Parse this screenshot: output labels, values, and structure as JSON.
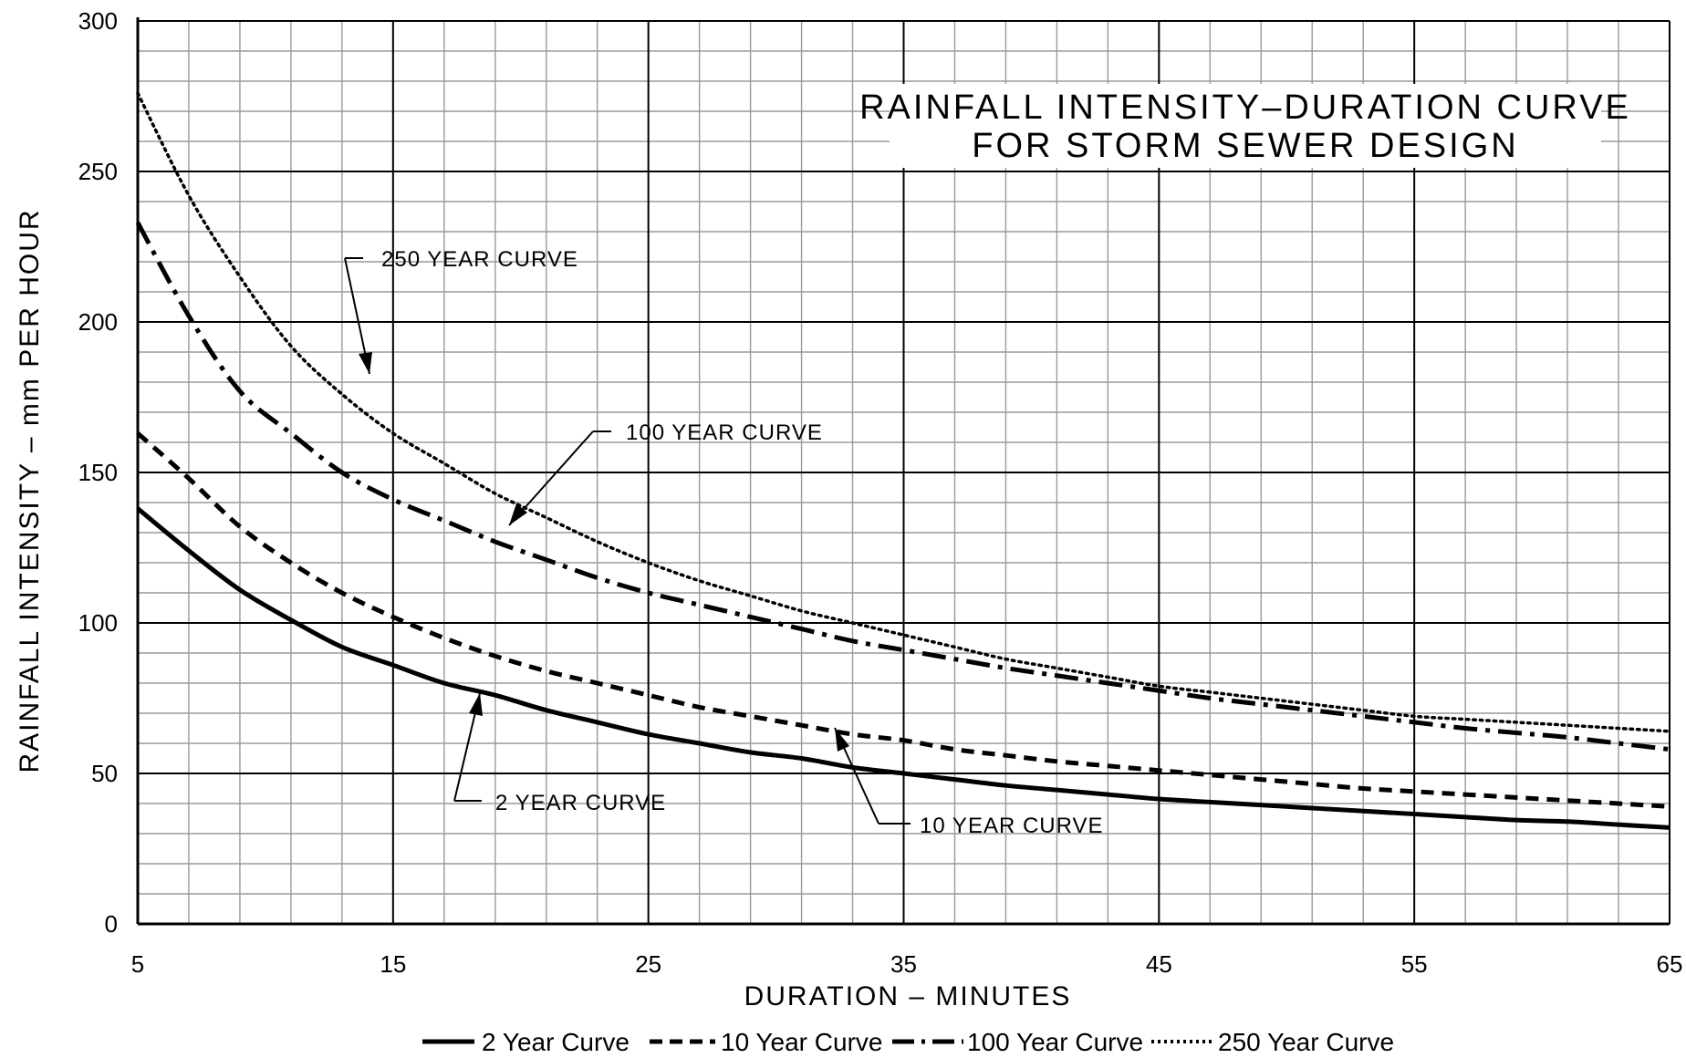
{
  "chart_data": {
    "type": "line",
    "title": "RAINFALL INTENSITY–DURATION CURVE",
    "subtitle": "FOR STORM SEWER DESIGN",
    "xlabel": "DURATION  –  MINUTES",
    "ylabel": "RAINFALL INTENSITY  –  mm PER HOUR",
    "xlim": [
      5,
      65
    ],
    "ylim": [
      0,
      300
    ],
    "x_ticks": [
      5,
      15,
      25,
      35,
      45,
      55,
      65
    ],
    "y_ticks": [
      0,
      50,
      100,
      150,
      200,
      250,
      300
    ],
    "grid": true,
    "legend_position": "bottom",
    "x": [
      5,
      7,
      9,
      11,
      13,
      15,
      17,
      19,
      21,
      23,
      25,
      27,
      29,
      31,
      33,
      35,
      37,
      39,
      41,
      43,
      45,
      47,
      49,
      51,
      53,
      55,
      57,
      59,
      61,
      63,
      65
    ],
    "series": [
      {
        "name": "2 Year Curve",
        "style": "solid",
        "values": [
          138,
          124,
          111,
          101,
          92,
          86,
          80,
          76,
          71,
          67,
          63,
          60,
          57,
          55,
          52,
          50,
          48,
          46,
          44.5,
          43,
          41.5,
          40.5,
          39.5,
          38.5,
          37.5,
          36.5,
          35.5,
          34.5,
          34,
          33,
          32
        ]
      },
      {
        "name": "10 Year Curve",
        "style": "dashed",
        "values": [
          163,
          148,
          132,
          120,
          110,
          102,
          95,
          89,
          84,
          80,
          76,
          72,
          69,
          66,
          63,
          61,
          58,
          56,
          54,
          52.5,
          51,
          49.5,
          48,
          46.5,
          45,
          44,
          43,
          42,
          41,
          40,
          39
        ]
      },
      {
        "name": "100 Year Curve",
        "style": "dashdot",
        "values": [
          233,
          202,
          177,
          163,
          150,
          141,
          134,
          127,
          121,
          115,
          110,
          106,
          102,
          98,
          94,
          91,
          88,
          85,
          82.5,
          80,
          77.5,
          75,
          73,
          71,
          69,
          67,
          65,
          63.5,
          62,
          60,
          58
        ]
      },
      {
        "name": "250 Year Curve",
        "style": "dotted",
        "values": [
          276,
          242,
          215,
          192,
          176,
          163,
          153,
          143,
          135,
          127,
          120,
          114,
          109,
          104,
          100,
          96,
          92,
          88,
          85,
          82,
          79,
          77,
          75,
          73,
          71,
          69,
          68,
          67,
          66,
          65,
          64
        ]
      }
    ],
    "annotations": [
      {
        "text": "250 YEAR CURVE",
        "series": "250 Year Curve"
      },
      {
        "text": "100 YEAR CURVE",
        "series": "100 Year Curve"
      },
      {
        "text": "2 YEAR CURVE",
        "series": "2 Year Curve"
      },
      {
        "text": "10 YEAR CURVE",
        "series": "10 Year Curve"
      }
    ]
  }
}
